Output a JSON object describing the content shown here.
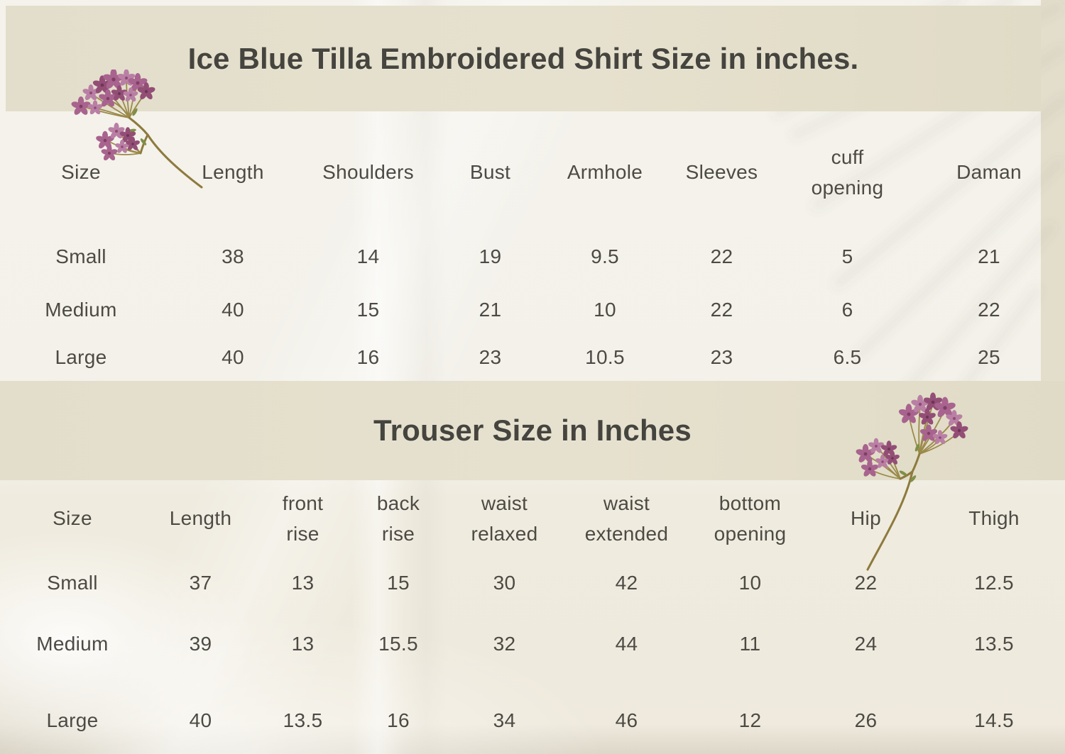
{
  "colors": {
    "band_background": "#e4dfcb",
    "page_background": "#f3f1ea",
    "text": "#4c4a43",
    "flower_pink": "#a8638e",
    "flower_green": "#7f8f48",
    "flower_stem": "#8d7a3e"
  },
  "shirt_section": {
    "title": "Ice Blue Tilla Embroidered Shirt Size in inches.",
    "columns": [
      "Size",
      "Length",
      "Shoulders",
      "Bust",
      "Armhole",
      "Sleeves",
      "cuff\nopening",
      "Daman"
    ],
    "rows": [
      {
        "size": "Small",
        "values": [
          "38",
          "14",
          "19",
          "9.5",
          "22",
          "5",
          "21"
        ]
      },
      {
        "size": "Medium",
        "values": [
          "40",
          "15",
          "21",
          "10",
          "22",
          "6",
          "22"
        ]
      },
      {
        "size": "Large",
        "values": [
          "40",
          "16",
          "23",
          "10.5",
          "23",
          "6.5",
          "25"
        ]
      }
    ]
  },
  "trouser_section": {
    "title": "Trouser Size in Inches",
    "columns": [
      "Size",
      "Length",
      "front\nrise",
      "back\nrise",
      "waist\nrelaxed",
      "waist\nextended",
      "bottom\nopening",
      "Hip",
      "Thigh"
    ],
    "rows": [
      {
        "size": "Small",
        "values": [
          "37",
          "13",
          "15",
          "30",
          "42",
          "10",
          "22",
          "12.5"
        ]
      },
      {
        "size": "Medium",
        "values": [
          "39",
          "13",
          "15.5",
          "32",
          "44",
          "11",
          "24",
          "13.5"
        ]
      },
      {
        "size": "Large",
        "values": [
          "40",
          "13.5",
          "16",
          "34",
          "46",
          "12",
          "26",
          "14.5"
        ]
      }
    ]
  },
  "decor": {
    "top_left": "pressed-flower-sprig",
    "right_middle": "pressed-flower-sprig",
    "background": "satin-fabric-with-palm-leaf-shadow"
  }
}
